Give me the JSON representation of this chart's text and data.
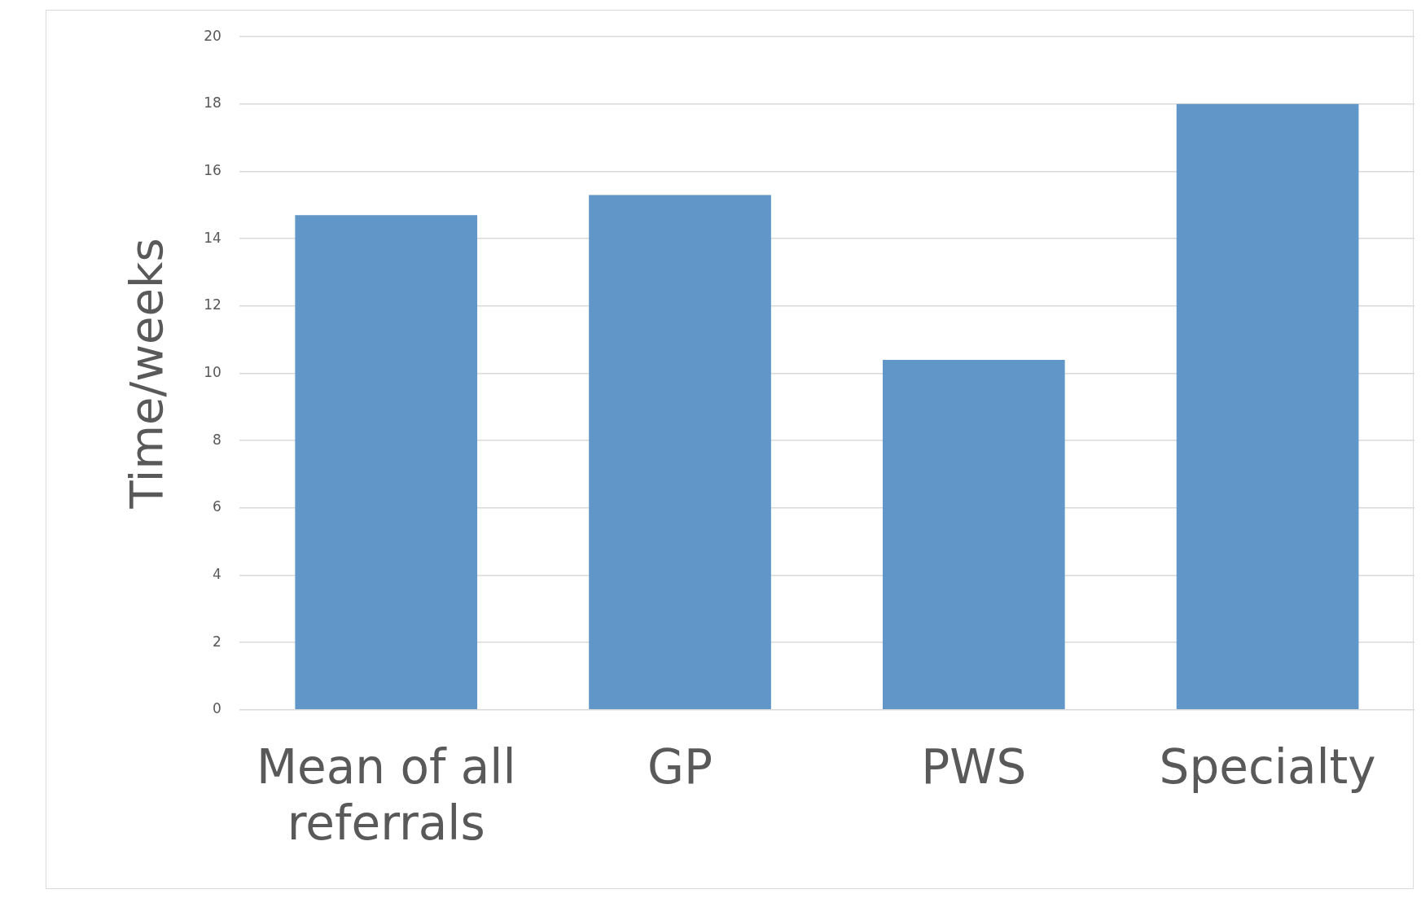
{
  "chart_data": {
    "type": "bar",
    "ylabel": "Time/weeks",
    "categories": [
      "Mean of all referrals",
      "GP",
      "PWS",
      "Specialty"
    ],
    "values": [
      14.7,
      15.3,
      10.4,
      18
    ],
    "color": "#6096c8",
    "ylim": [
      0,
      20
    ],
    "yticks": [
      0,
      2,
      4,
      6,
      8,
      10,
      12,
      14,
      16,
      18,
      20
    ],
    "grid": "y",
    "legend": false
  }
}
